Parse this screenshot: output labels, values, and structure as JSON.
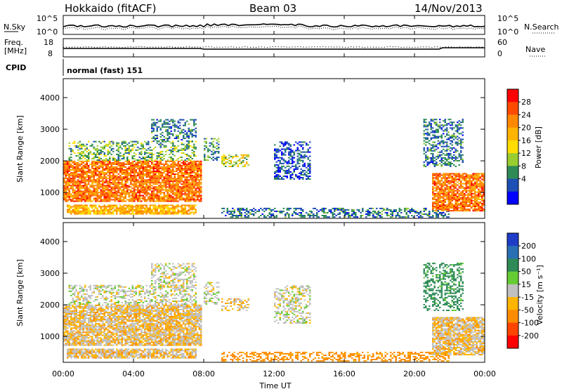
{
  "header": {
    "station": "Hokkaido (fitACF)",
    "beam": "Beam 03",
    "date": "14/Nov/2013"
  },
  "noise_panel": {
    "left_label": "N.Sky",
    "right_label": "N.Search",
    "left_top_tick": "10^5",
    "left_bottom_tick": "10^0",
    "right_top_tick": "10^5",
    "right_bottom_tick": "10^0"
  },
  "freq_panel": {
    "left_label_line1": "Freq.",
    "left_label_line2": "[MHz]",
    "right_label": "Nave",
    "left_ticks": [
      "18",
      "8"
    ],
    "right_ticks": [
      "60",
      "0"
    ]
  },
  "cpid_panel": {
    "label": "CPID",
    "text": "normal (fast) 151"
  },
  "power_panel": {
    "ylabel": "Slant Range [km]",
    "colorbar_label": "Power [dB]",
    "colorbar_ticks": [
      "28",
      "24",
      "20",
      "16",
      "12",
      "8",
      "4"
    ],
    "colorbar_colors": [
      "#ff0000",
      "#ff4a00",
      "#ff8800",
      "#ffb400",
      "#ffdd00",
      "#9acd32",
      "#2e8b57",
      "#1e4fb4",
      "#0000ff"
    ]
  },
  "velocity_panel": {
    "ylabel": "Slant Range [km]",
    "colorbar_label": "Velocity [m s⁻¹]",
    "colorbar_ticks": [
      "200",
      "100",
      "50",
      "15",
      "-15",
      "-50",
      "-100",
      "-200"
    ],
    "colorbar_colors": [
      "#1e3cc8",
      "#2a6fb4",
      "#2e8b57",
      "#66cc33",
      "#c0c0c0",
      "#ffb400",
      "#ff8c00",
      "#ff4400",
      "#ff0000"
    ]
  },
  "x_axis": {
    "label": "Time UT",
    "ticks": [
      "00:00",
      "04:00",
      "08:00",
      "12:00",
      "16:00",
      "20:00",
      "00:00"
    ]
  },
  "chart_data": {
    "type": "heatmap",
    "x_range_hours": [
      0,
      24
    ],
    "y_range_km": [
      180,
      4600
    ],
    "y_ticks": [
      "1000",
      "2000",
      "3000",
      "4000"
    ],
    "noise_scale": "log",
    "freq_range_mhz": [
      8,
      18
    ],
    "nave_range": [
      0,
      60
    ],
    "echo_regions": [
      {
        "t0": 0.0,
        "t1": 7.8,
        "r0": 700,
        "r1": 2000,
        "power_db": 24,
        "velocity": -15
      },
      {
        "t0": 0.3,
        "t1": 7.5,
        "r0": 2000,
        "r1": 2600,
        "power_db": 12,
        "velocity": 0
      },
      {
        "t0": 0.2,
        "t1": 7.5,
        "r0": 300,
        "r1": 600,
        "power_db": 20,
        "velocity": -15
      },
      {
        "t0": 5.0,
        "t1": 7.5,
        "r0": 2600,
        "r1": 3300,
        "power_db": 8,
        "velocity": 0
      },
      {
        "t0": 8.0,
        "t1": 8.8,
        "r0": 2000,
        "r1": 2700,
        "power_db": 10,
        "velocity": 0
      },
      {
        "t0": 9.0,
        "t1": 10.5,
        "r0": 1800,
        "r1": 2200,
        "power_db": 16,
        "velocity": -15
      },
      {
        "t0": 12.0,
        "t1": 14.0,
        "r0": 1400,
        "r1": 2600,
        "power_db": 6,
        "velocity": 0
      },
      {
        "t0": 9.0,
        "t1": 22.0,
        "r0": 200,
        "r1": 500,
        "power_db": 8,
        "velocity": -50
      },
      {
        "t0": 20.5,
        "t1": 22.8,
        "r0": 1800,
        "r1": 3300,
        "power_db": 8,
        "velocity": 50
      },
      {
        "t0": 21.0,
        "t1": 24.0,
        "r0": 400,
        "r1": 1600,
        "power_db": 24,
        "velocity": -15
      }
    ]
  }
}
